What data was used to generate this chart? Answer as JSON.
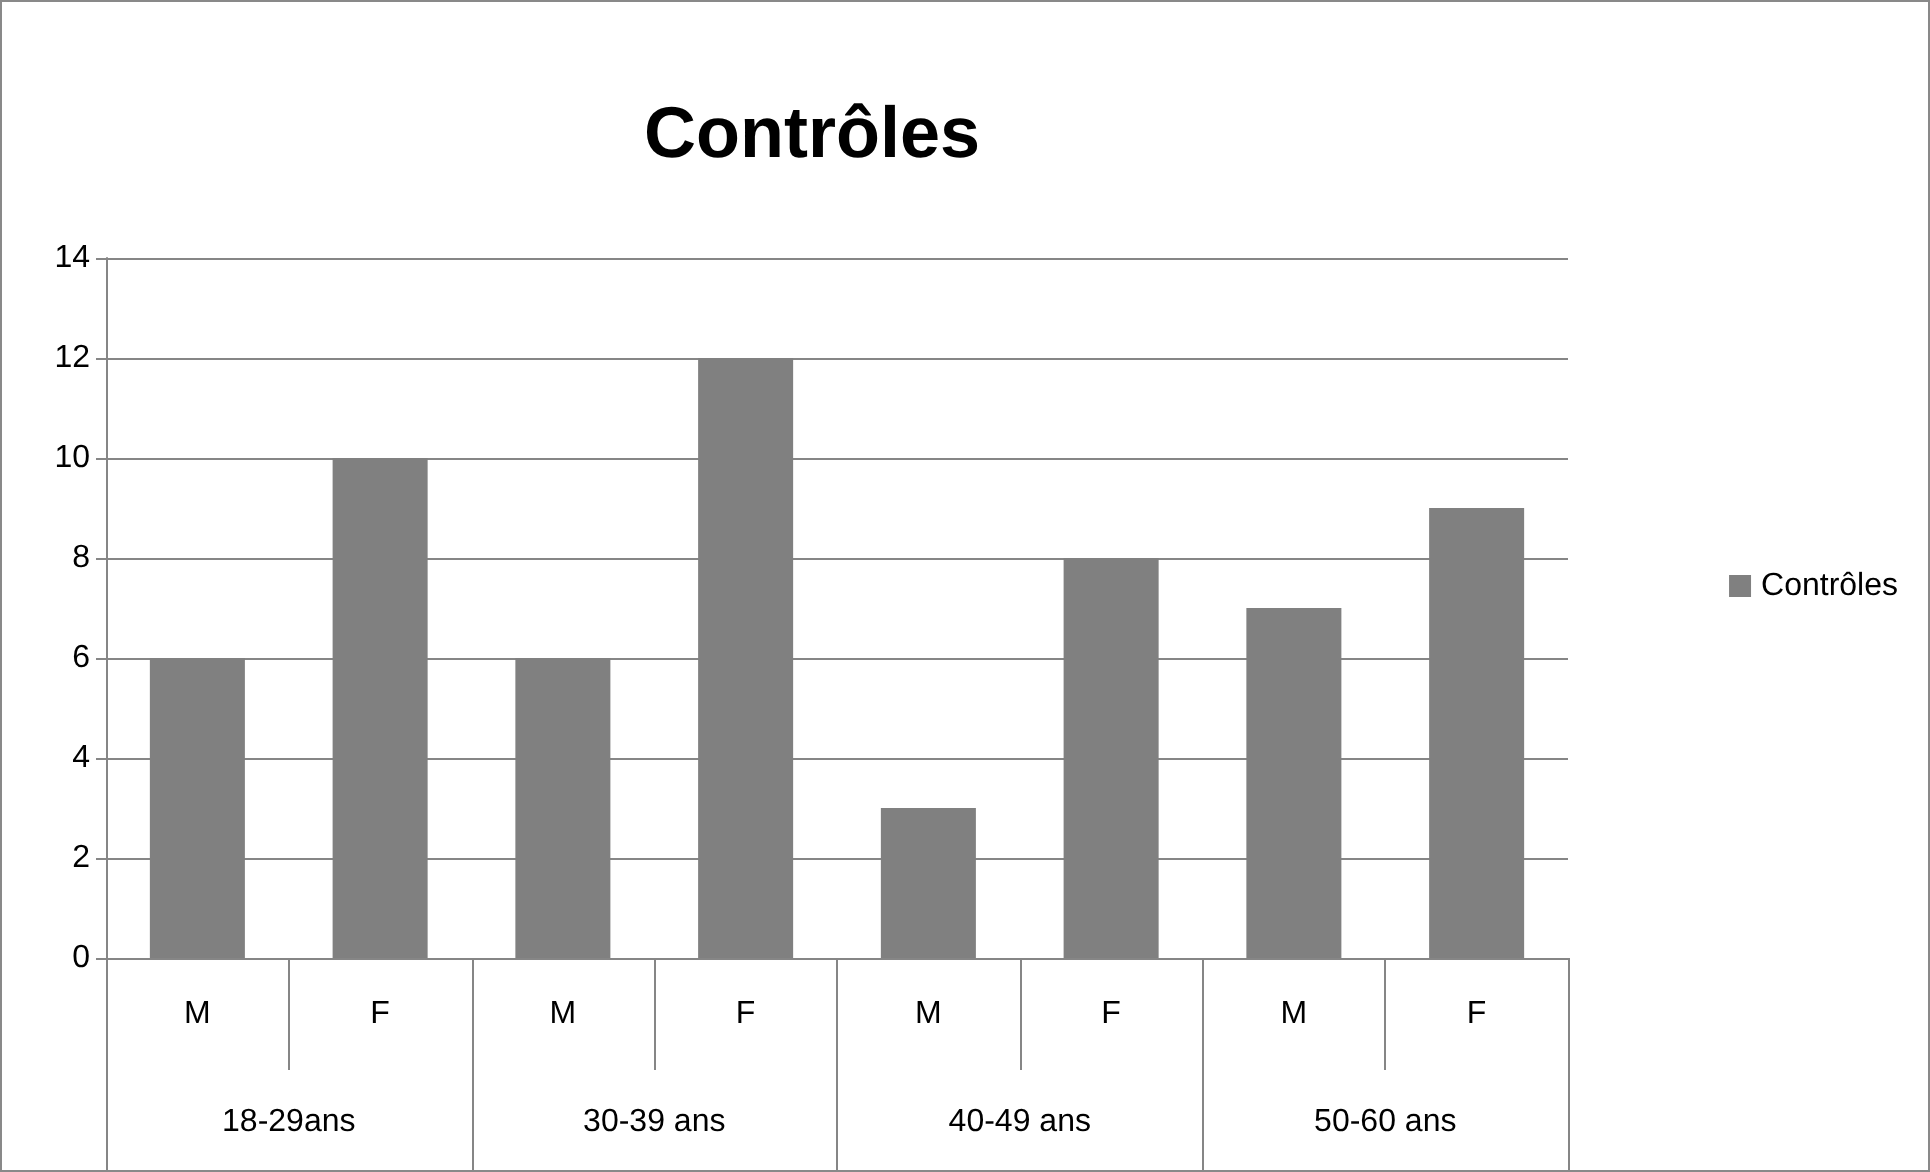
{
  "chart_data": {
    "type": "bar",
    "title": "Contrôles",
    "categories": [
      "M",
      "F",
      "M",
      "F",
      "M",
      "F",
      "M",
      "F"
    ],
    "series": [
      {
        "name": "Contrôles",
        "color": "#808080",
        "values": [
          6,
          10,
          6,
          12,
          3,
          8,
          7,
          9
        ]
      }
    ],
    "annotations": [
      "18-29ans",
      "30-39 ans",
      "40-49 ans",
      "50-60 ans"
    ],
    "ylim": [
      0,
      14
    ],
    "yticks": [
      0,
      2,
      4,
      6,
      8,
      10,
      12,
      14
    ],
    "grid": "y",
    "legend": "right"
  }
}
